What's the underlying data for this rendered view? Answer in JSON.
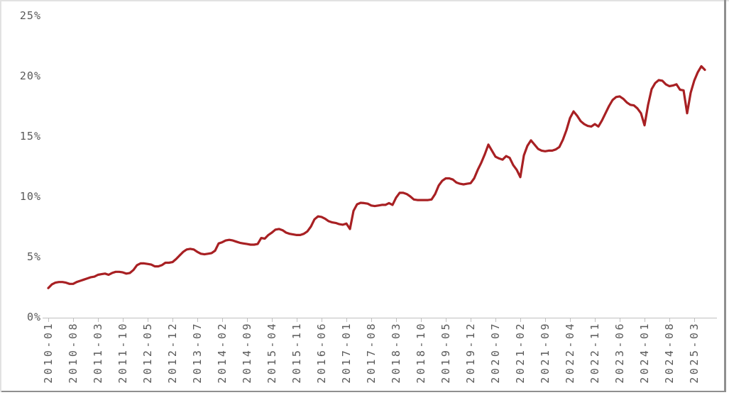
{
  "chart_data": {
    "type": "line",
    "title": "",
    "xlabel": "",
    "ylabel": "",
    "ylim": [
      0,
      25
    ],
    "grid": false,
    "legend": "none",
    "frequency": "monthly",
    "x_first": "2010-01",
    "x_last": "2025-06",
    "tick_interval_months": 7,
    "y_tick_labels": [
      "0%",
      "5%",
      "10%",
      "15%",
      "20%",
      "25%"
    ],
    "y_tick_values": [
      0,
      5,
      10,
      15,
      20,
      25
    ],
    "x_tick_labels": [
      "2010-01",
      "2010-08",
      "2011-03",
      "2011-10",
      "2012-05",
      "2012-12",
      "2013-07",
      "2014-02",
      "2014-09",
      "2015-04",
      "2015-11",
      "2016-06",
      "2017-01",
      "2017-08",
      "2018-03",
      "2018-10",
      "2019-05",
      "2019-12",
      "2020-07",
      "2021-02",
      "2021-09",
      "2022-04",
      "2022-11",
      "2023-06",
      "2024-01",
      "2024-08",
      "2025-03"
    ],
    "series": [
      {
        "color": "#a82023",
        "unit": "%",
        "values": [
          2.4,
          2.7,
          2.85,
          2.9,
          2.9,
          2.85,
          2.75,
          2.75,
          2.9,
          3.0,
          3.1,
          3.2,
          3.3,
          3.35,
          3.5,
          3.55,
          3.6,
          3.5,
          3.65,
          3.75,
          3.75,
          3.7,
          3.6,
          3.65,
          3.9,
          4.3,
          4.45,
          4.45,
          4.4,
          4.35,
          4.2,
          4.2,
          4.3,
          4.5,
          4.5,
          4.55,
          4.8,
          5.1,
          5.4,
          5.6,
          5.65,
          5.6,
          5.4,
          5.25,
          5.2,
          5.25,
          5.3,
          5.5,
          6.1,
          6.2,
          6.35,
          6.4,
          6.35,
          6.25,
          6.15,
          6.1,
          6.05,
          6.0,
          6.0,
          6.05,
          6.55,
          6.5,
          6.8,
          7.0,
          7.25,
          7.3,
          7.2,
          7.0,
          6.9,
          6.85,
          6.8,
          6.8,
          6.9,
          7.1,
          7.5,
          8.1,
          8.35,
          8.3,
          8.15,
          7.95,
          7.85,
          7.8,
          7.7,
          7.65,
          7.75,
          7.3,
          8.8,
          9.35,
          9.47,
          9.45,
          9.4,
          9.25,
          9.2,
          9.25,
          9.3,
          9.3,
          9.45,
          9.3,
          9.9,
          10.3,
          10.3,
          10.2,
          10.0,
          9.75,
          9.7,
          9.7,
          9.7,
          9.7,
          9.75,
          10.2,
          10.9,
          11.3,
          11.5,
          11.5,
          11.4,
          11.15,
          11.05,
          11.0,
          11.05,
          11.1,
          11.5,
          12.2,
          12.8,
          13.5,
          14.3,
          13.8,
          13.3,
          13.15,
          13.05,
          13.35,
          13.2,
          12.6,
          12.2,
          11.6,
          13.4,
          14.2,
          14.65,
          14.3,
          13.95,
          13.8,
          13.75,
          13.8,
          13.8,
          13.9,
          14.1,
          14.7,
          15.5,
          16.5,
          17.05,
          16.7,
          16.25,
          16.0,
          15.85,
          15.8,
          16.0,
          15.8,
          16.3,
          16.9,
          17.5,
          18.0,
          18.25,
          18.3,
          18.1,
          17.8,
          17.6,
          17.55,
          17.3,
          16.9,
          15.9,
          17.6,
          18.9,
          19.4,
          19.65,
          19.6,
          19.3,
          19.15,
          19.2,
          19.3,
          18.85,
          18.8,
          16.9,
          18.6,
          19.6,
          20.3,
          20.8,
          20.5
        ]
      }
    ]
  },
  "colors": {
    "line": "#a82023",
    "axis": "#bfbfbf",
    "label_text": "#595959",
    "background": "#ffffff",
    "frame_light": "#e2e2e2",
    "frame_dark": "#8f8f8f"
  }
}
